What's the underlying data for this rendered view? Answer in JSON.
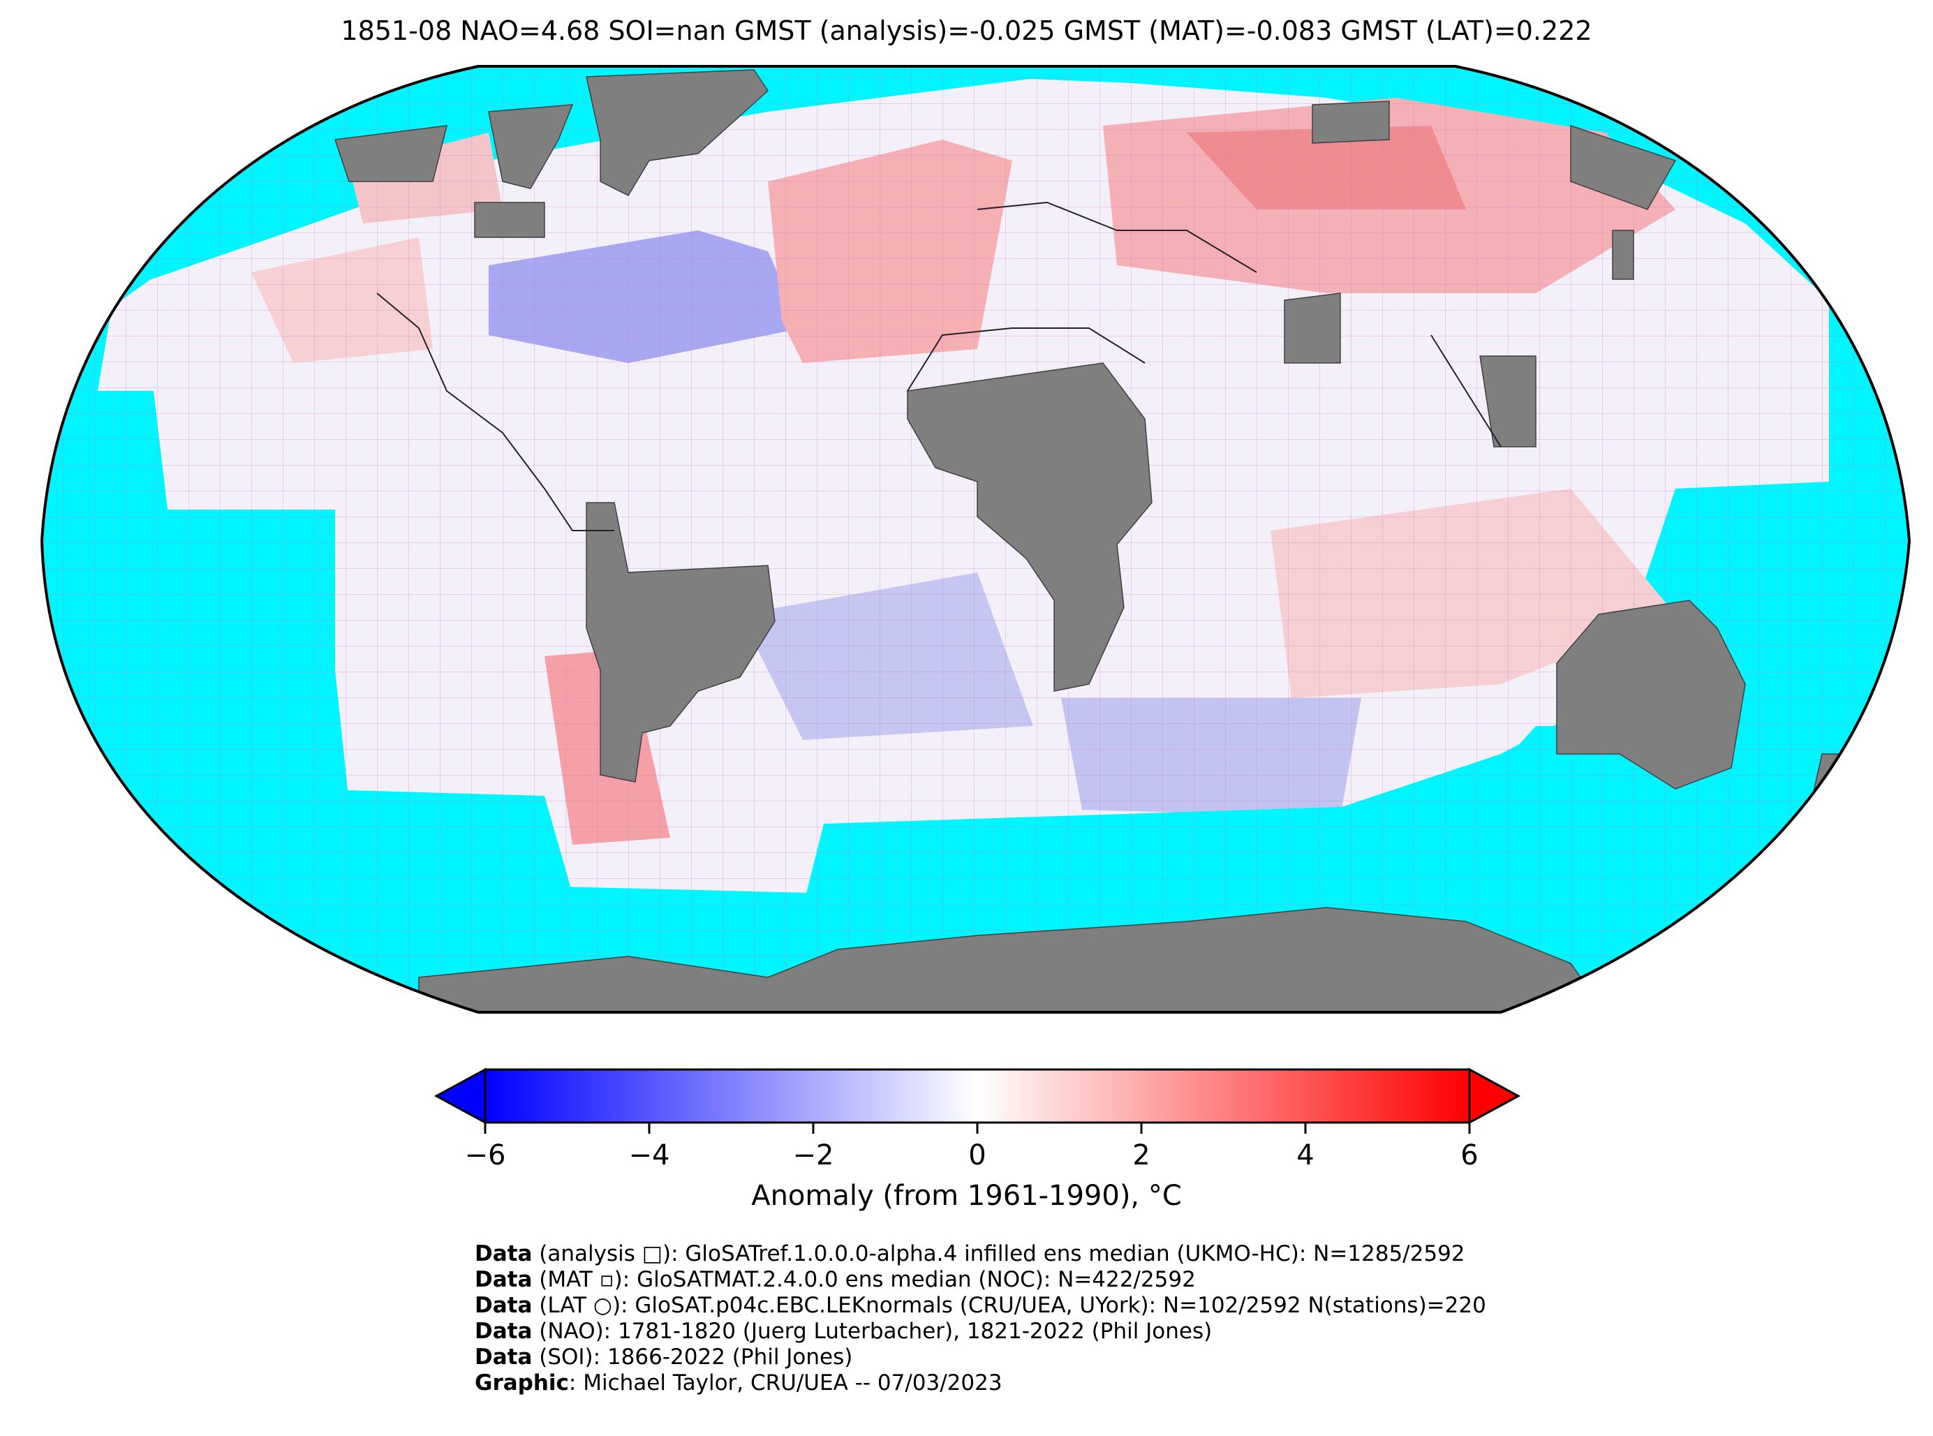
{
  "title": "1851-08 NAO=4.68 SOI=nan GMST (analysis)=-0.025 GMST (MAT)=-0.083 GMST (LAT)=0.222",
  "colors": {
    "ocean_no_data": "#00F5FF",
    "land_no_data": "#808080",
    "cold_max": "#0000FF",
    "neutral": "#FFFFFF",
    "warm_max": "#FF0000",
    "grid": "#C77AC7"
  },
  "projection": "Robinson",
  "colorbar": {
    "min": -6,
    "max": 6,
    "ticks": [
      "−6",
      "−4",
      "−2",
      "0",
      "2",
      "4",
      "6"
    ],
    "tick_values": [
      -6,
      -4,
      -2,
      0,
      2,
      4,
      6
    ],
    "label": "Anomaly (from 1961-1990), °C",
    "extend": "both"
  },
  "credits": [
    {
      "bold": "Data",
      "text": " (analysis □): GloSATref.1.0.0.0-alpha.4 infilled ens median (UKMO-HC): N=1285/2592"
    },
    {
      "bold": "Data",
      "text": " (MAT ▫): GloSATMAT.2.4.0.0 ens median (NOC): N=422/2592"
    },
    {
      "bold": "Data",
      "text": " (LAT ○): GloSAT.p04c.EBC.LEKnormals (CRU/UEA, UYork): N=102/2592 N(stations)=220"
    },
    {
      "bold": "Data",
      "text": " (NAO): 1781-1820 (Juerg Luterbacher), 1821-2022 (Phil Jones)"
    },
    {
      "bold": "Data",
      "text": " (SOI): 1866-2022 (Phil Jones)"
    },
    {
      "bold": "Graphic",
      "text": ": Michael Taylor, CRU/UEA -- 07/03/2023"
    }
  ]
}
